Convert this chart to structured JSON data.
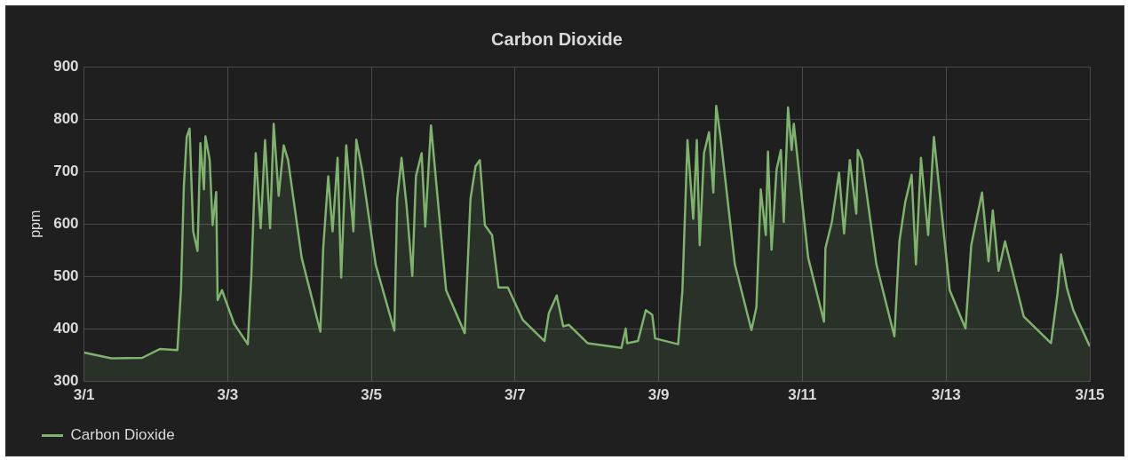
{
  "chart_data": {
    "type": "area",
    "title": "Carbon Dioxide",
    "ylabel": "ppm",
    "xlim": [
      "--03-01",
      "--03-15"
    ],
    "xticks": [
      {
        "value": "--03-01",
        "label": "3/1"
      },
      {
        "value": "--03-03",
        "label": "3/3"
      },
      {
        "value": "--03-05",
        "label": "3/5"
      },
      {
        "value": "--03-07",
        "label": "3/7"
      },
      {
        "value": "--03-09",
        "label": "3/9"
      },
      {
        "value": "--03-11",
        "label": "3/11"
      },
      {
        "value": "--03-13",
        "label": "3/13"
      },
      {
        "value": "--03-15",
        "label": "3/15"
      }
    ],
    "ylim": [
      300,
      900
    ],
    "yticks": [
      300,
      400,
      500,
      600,
      700,
      800,
      900
    ],
    "grid": true,
    "legend": "bottom left",
    "marker": "none",
    "line_style": "solid",
    "series": [
      {
        "name": "Carbon Dioxide",
        "color": "#7eb26d",
        "x": [
          "--03-01T00:00",
          "--03-01T09:07",
          "--03-01T19:26",
          "--03-02T01:26",
          "--03-02T07:12",
          "--03-02T08:24",
          "--03-02T09:22",
          "--03-02T10:19",
          "--03-02T11:17",
          "--03-02T12:29",
          "--03-02T13:55",
          "--03-02T14:53",
          "--03-02T16:05",
          "--03-02T16:34",
          "--03-02T18:00",
          "--03-02T18:58",
          "--03-02T20:10",
          "--03-02T20:38",
          "--03-02T22:05",
          "--03-03T02:10",
          "--03-03T06:43",
          "--03-03T07:55",
          "--03-03T09:22",
          "--03-03T11:02",
          "--03-03T12:29",
          "--03-03T14:10",
          "--03-03T15:22",
          "--03-03T17:02",
          "--03-03T18:43",
          "--03-03T20:10",
          "--03-04T00:43",
          "--03-04T06:58",
          "--03-04T07:55",
          "--03-04T09:36",
          "--03-04T11:02",
          "--03-04T12:43",
          "--03-04T13:55",
          "--03-04T15:36",
          "--03-04T18:00",
          "--03-04T18:58",
          "--03-04T20:53",
          "--03-05T01:26",
          "--03-05T07:41",
          "--03-05T08:38",
          "--03-05T10:05",
          "--03-05T11:46",
          "--03-05T13:41",
          "--03-05T14:53",
          "--03-05T16:48",
          "--03-05T18:00",
          "--03-05T19:55",
          "--03-06T00:58",
          "--03-06T07:12",
          "--03-06T09:07",
          "--03-06T10:48",
          "--03-06T12:14",
          "--03-06T13:55",
          "--03-06T16:19",
          "--03-06T18:29",
          "--03-06T21:36",
          "--03-07T02:38",
          "--03-07T09:50",
          "--03-07T11:17",
          "--03-07T13:55",
          "--03-07T16:05",
          "--03-07T18:00",
          "--03-08T00:14",
          "--03-08T11:31",
          "--03-08T12:58",
          "--03-08T13:26",
          "--03-08T17:02",
          "--03-08T19:41",
          "--03-08T21:50",
          "--03-08T22:48",
          "--03-09T06:29",
          "--03-09T07:55",
          "--03-09T09:36",
          "--03-09T11:31",
          "--03-09T12:43",
          "--03-09T13:41",
          "--03-09T15:07",
          "--03-09T16:48",
          "--03-09T18:14",
          "--03-09T19:12",
          "--03-09T20:38",
          "--03-10T01:26",
          "--03-10T06:58",
          "--03-10T08:38",
          "--03-10T10:05",
          "--03-10T11:46",
          "--03-10T12:29",
          "--03-10T13:41",
          "--03-10T15:22",
          "--03-10T16:48",
          "--03-10T17:46",
          "--03-10T19:12",
          "--03-10T20:24",
          "--03-10T21:07",
          "--03-11T01:55",
          "--03-11T07:12",
          "--03-11T07:41",
          "--03-11T09:50",
          "--03-11T12:14",
          "--03-11T13:55",
          "--03-11T15:50",
          "--03-11T18:00",
          "--03-11T18:29",
          "--03-11T19:55",
          "--03-12T00:43",
          "--03-12T06:43",
          "--03-12T08:24",
          "--03-12T10:19",
          "--03-12T12:29",
          "--03-12T13:55",
          "--03-12T15:36",
          "--03-12T18:00",
          "--03-12T19:55",
          "--03-13T01:12",
          "--03-13T06:29",
          "--03-13T08:24",
          "--03-13T12:00",
          "--03-13T14:10",
          "--03-13T15:36",
          "--03-13T17:31",
          "--03-13T19:41",
          "--03-14T01:55",
          "--03-14T11:02",
          "--03-14T13:12",
          "--03-14T14:24",
          "--03-14T16:19",
          "--03-14T18:29",
          "--03-15T00:00"
        ],
        "values": [
          355,
          344,
          345,
          362,
          360,
          474,
          673,
          766,
          782,
          586,
          549,
          754,
          666,
          767,
          722,
          598,
          661,
          455,
          474,
          410,
          371,
          504,
          735,
          592,
          760,
          592,
          791,
          654,
          750,
          722,
          536,
          395,
          554,
          691,
          586,
          726,
          498,
          750,
          586,
          761,
          704,
          523,
          397,
          648,
          726,
          635,
          501,
          691,
          735,
          595,
          788,
          474,
          392,
          648,
          710,
          722,
          598,
          579,
          479,
          479,
          417,
          377,
          430,
          464,
          405,
          408,
          373,
          364,
          401,
          373,
          377,
          436,
          427,
          382,
          371,
          474,
          760,
          610,
          760,
          560,
          735,
          775,
          660,
          825,
          766,
          523,
          398,
          442,
          666,
          579,
          738,
          551,
          704,
          741,
          604,
          822,
          741,
          791,
          536,
          414,
          554,
          604,
          698,
          582,
          722,
          620,
          741,
          722,
          523,
          386,
          567,
          641,
          694,
          523,
          726,
          579,
          766,
          474,
          401,
          560,
          660,
          529,
          626,
          511,
          567,
          424,
          373,
          467,
          542,
          479,
          436,
          367
        ]
      }
    ]
  }
}
